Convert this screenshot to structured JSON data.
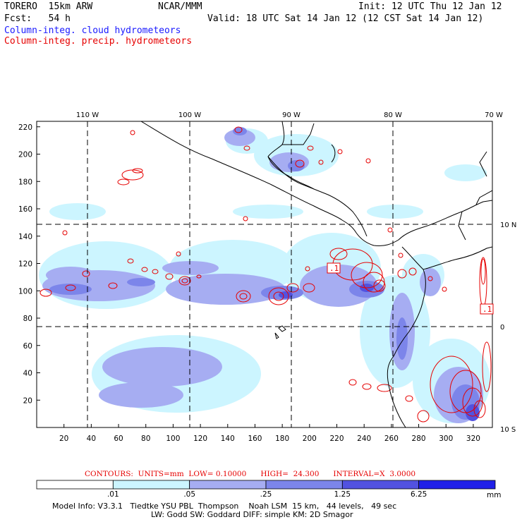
{
  "header": {
    "model": "TORERO  15km ARW",
    "org": "NCAR/MMM",
    "init": "Init: 12 UTC Thu 12 Jan 12",
    "fcst": "Fcst:   54 h",
    "valid": "Valid: 18 UTC Sat 14 Jan 12 (12 CST Sat 14 Jan 12)",
    "legend_cloud": "Column-integ. cloud hydrometeors",
    "legend_precip": "Column-integ. precip. hydrometeors"
  },
  "map": {
    "top_lon_labels": [
      "110 W",
      "100 W",
      "90 W",
      "80 W",
      "70 W"
    ],
    "right_lat_labels": [
      "10 N",
      "0",
      "10 S"
    ],
    "y_ticks": [
      "220",
      "200",
      "180",
      "160",
      "140",
      "120",
      "100",
      "80",
      "60",
      "40",
      "20"
    ],
    "x_ticks": [
      "20",
      "40",
      "60",
      "80",
      "100",
      "120",
      "140",
      "160",
      "180",
      "200",
      "220",
      "240",
      "260",
      "280",
      "300",
      "320"
    ],
    "contour_labels": [
      ".1",
      ".1"
    ],
    "colors": {
      "cloud_light": "#ccf5ff",
      "cloud_mid": "#a0a8f0",
      "cloud_dark": "#6c78e6",
      "cloud_deep": "#3c3cdc",
      "precip_contour": "#e60000",
      "coast": "#000000"
    }
  },
  "contours_info": "CONTOURS:  UNITS=mm  LOW= 0.10000      HIGH=  24.300      INTERVAL=X  3.0000",
  "colorbar": {
    "labels": [
      ".01",
      ".05",
      ".25",
      "1.25",
      "6.25"
    ],
    "unit": "mm",
    "colors": [
      "#ffffff",
      "#ccf5ff",
      "#a6adf2",
      "#7c85ea",
      "#5252e0",
      "#2020e8"
    ]
  },
  "footer": {
    "line1": "Model Info: V3.3.1   Tiedtke YSU PBL  Thompson    Noah LSM  15 km,   44 levels,   49 sec",
    "line2": "LW: Godd SW: Goddard DIFF: simple KM: 2D Smagor"
  }
}
